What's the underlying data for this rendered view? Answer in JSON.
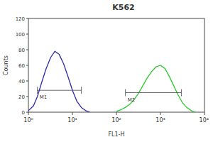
{
  "chart_data": {
    "type": "line",
    "title": "K562",
    "x_label": "FL1-H",
    "y_label": "Counts",
    "log": "x",
    "grid": false,
    "xlim": [
      1,
      10000
    ],
    "ylim": [
      0,
      120
    ],
    "xticks": [
      {
        "value": 1,
        "label": "10⁰"
      },
      {
        "value": 10,
        "label": "10¹"
      },
      {
        "value": 100,
        "label": "10²"
      },
      {
        "value": 1000,
        "label": "10³"
      },
      {
        "value": 10000,
        "label": "10⁴"
      }
    ],
    "yticks": [
      0,
      20,
      40,
      60,
      80,
      100,
      120
    ],
    "series": [
      {
        "color": "#2b2ba8",
        "x": [
          1,
          1.3,
          1.6,
          2,
          2.5,
          3.2,
          4,
          5,
          6.3,
          8,
          10,
          12.6,
          16,
          20,
          25
        ],
        "values": [
          2,
          8,
          20,
          38,
          55,
          70,
          78,
          74,
          62,
          45,
          28,
          14,
          6,
          2,
          0
        ]
      },
      {
        "color": "#2fc82f",
        "x": [
          100,
          126,
          158,
          200,
          251,
          316,
          398,
          501,
          631,
          794,
          1000,
          1259,
          1585,
          1995,
          2512,
          3162,
          3981,
          5012,
          6310
        ],
        "values": [
          1,
          3,
          6,
          10,
          16,
          24,
          34,
          44,
          52,
          58,
          60,
          56,
          46,
          34,
          22,
          12,
          6,
          2,
          0
        ]
      }
    ],
    "gates": [
      {
        "label": "M1",
        "range": [
          1.6,
          16
        ],
        "y": 28
      },
      {
        "label": "M2",
        "range": [
          160,
          3000
        ],
        "y": 25
      }
    ]
  }
}
